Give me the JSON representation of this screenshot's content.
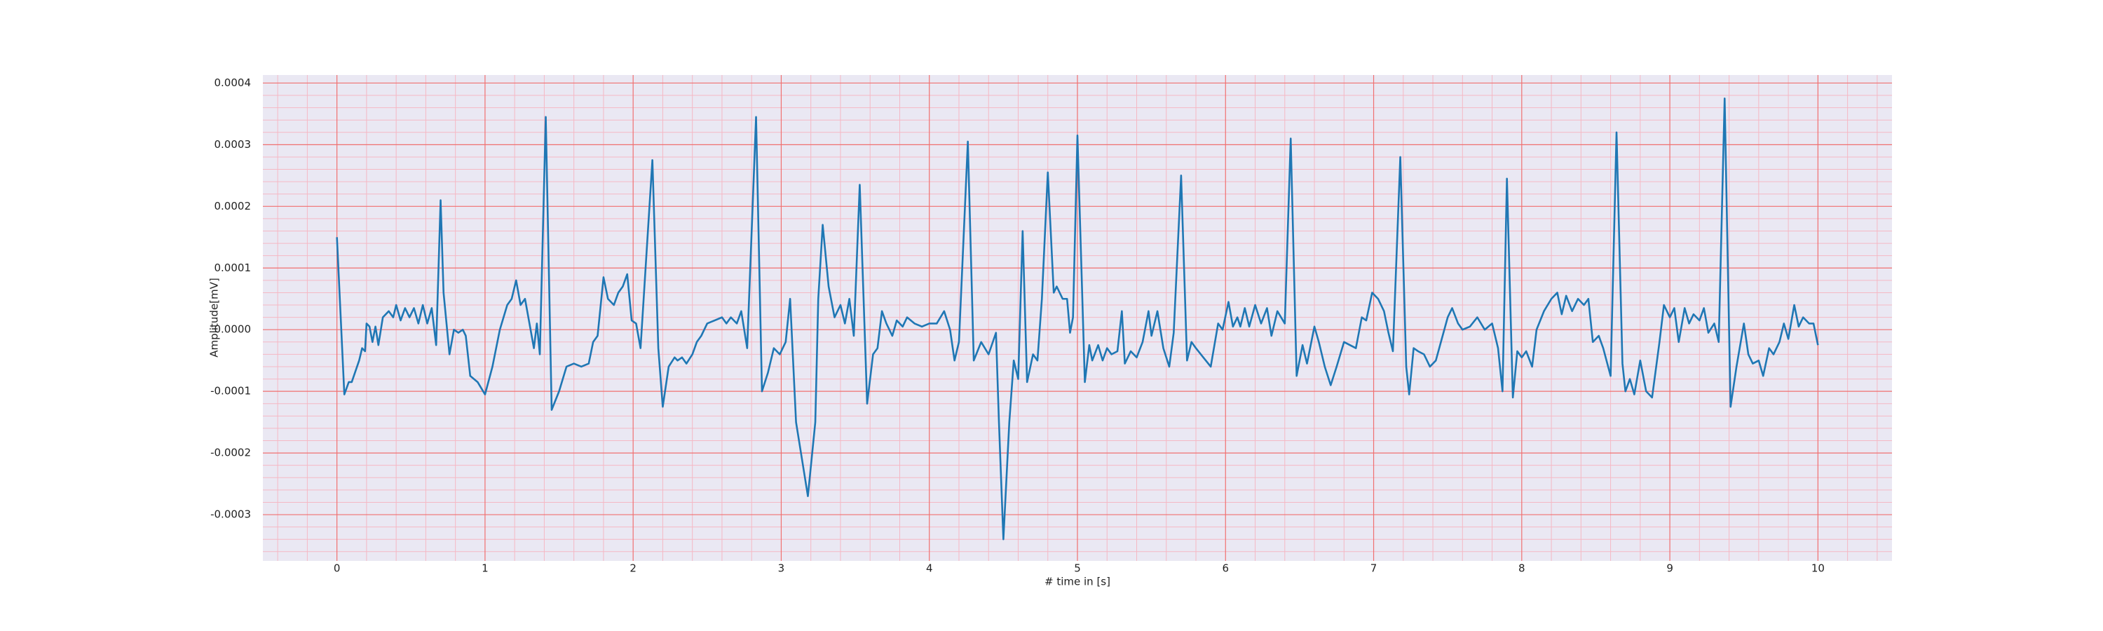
{
  "chart_data": {
    "type": "line",
    "xlabel": "# time in [s]",
    "ylabel": "Amplitude[mV]",
    "color": "#1f77b4",
    "background": "#eae8f3",
    "grid": true,
    "grid_color": "#f07070",
    "minor_grid": {
      "x_per_major": 5,
      "y_per_major": 5,
      "color": "#f5b8c4"
    },
    "xlim": [
      -0.5,
      10.5
    ],
    "xticks": [
      0,
      1,
      2,
      3,
      4,
      5,
      6,
      7,
      8,
      9,
      10
    ],
    "ylim": [
      -0.000375,
      0.000413
    ],
    "yticks": [
      -0.0003,
      -0.0002,
      -0.0001,
      {
        "value": 0,
        "label": "0.0000"
      },
      0.0001,
      0.0002,
      0.0003,
      0.0004
    ],
    "x": [
      0,
      0.05,
      0.08,
      0.1,
      0.15,
      0.17,
      0.19,
      0.2,
      0.22,
      0.24,
      0.26,
      0.28,
      0.31,
      0.35,
      0.38,
      0.4,
      0.43,
      0.46,
      0.49,
      0.52,
      0.55,
      0.58,
      0.61,
      0.64,
      0.67,
      0.7,
      0.72,
      0.76,
      0.79,
      0.82,
      0.85,
      0.87,
      0.9,
      0.95,
      1.0,
      1.05,
      1.1,
      1.15,
      1.18,
      1.21,
      1.24,
      1.27,
      1.3,
      1.33,
      1.35,
      1.37,
      1.41,
      1.45,
      1.5,
      1.55,
      1.6,
      1.65,
      1.7,
      1.73,
      1.76,
      1.8,
      1.83,
      1.87,
      1.9,
      1.93,
      1.96,
      1.99,
      2.02,
      2.05,
      2.13,
      2.17,
      2.2,
      2.24,
      2.28,
      2.3,
      2.33,
      2.36,
      2.4,
      2.43,
      2.46,
      2.5,
      2.55,
      2.6,
      2.63,
      2.66,
      2.7,
      2.73,
      2.77,
      2.83,
      2.87,
      2.91,
      2.95,
      2.99,
      3.03,
      3.06,
      3.1,
      3.18,
      3.23,
      3.25,
      3.28,
      3.32,
      3.36,
      3.4,
      3.43,
      3.46,
      3.49,
      3.53,
      3.58,
      3.62,
      3.65,
      3.68,
      3.71,
      3.75,
      3.78,
      3.82,
      3.85,
      3.9,
      3.95,
      4.0,
      4.05,
      4.1,
      4.14,
      4.17,
      4.2,
      4.26,
      4.3,
      4.35,
      4.4,
      4.45,
      4.47,
      4.5,
      4.54,
      4.57,
      4.6,
      4.63,
      4.66,
      4.7,
      4.73,
      4.76,
      4.8,
      4.84,
      4.86,
      4.9,
      4.93,
      4.95,
      4.97,
      5.0,
      5.05,
      5.08,
      5.1,
      5.14,
      5.17,
      5.2,
      5.23,
      5.27,
      5.3,
      5.32,
      5.36,
      5.4,
      5.44,
      5.48,
      5.5,
      5.54,
      5.58,
      5.62,
      5.65,
      5.7,
      5.74,
      5.77,
      5.8,
      5.85,
      5.9,
      5.95,
      5.98,
      6.02,
      6.05,
      6.08,
      6.1,
      6.13,
      6.16,
      6.2,
      6.24,
      6.28,
      6.31,
      6.35,
      6.4,
      6.44,
      6.48,
      6.52,
      6.55,
      6.6,
      6.63,
      6.67,
      6.71,
      6.75,
      6.8,
      6.84,
      6.88,
      6.92,
      6.95,
      6.99,
      7.03,
      7.07,
      7.1,
      7.13,
      7.18,
      7.22,
      7.24,
      7.27,
      7.3,
      7.34,
      7.38,
      7.42,
      7.46,
      7.5,
      7.53,
      7.57,
      7.6,
      7.65,
      7.7,
      7.75,
      7.8,
      7.84,
      7.87,
      7.9,
      7.94,
      7.97,
      8.0,
      8.03,
      8.07,
      8.1,
      8.15,
      8.2,
      8.24,
      8.27,
      8.3,
      8.34,
      8.38,
      8.42,
      8.45,
      8.48,
      8.52,
      8.55,
      8.6,
      8.64,
      8.68,
      8.7,
      8.73,
      8.76,
      8.8,
      8.84,
      8.88,
      8.93,
      8.96,
      9.0,
      9.03,
      9.06,
      9.1,
      9.13,
      9.16,
      9.2,
      9.23,
      9.26,
      9.3,
      9.33,
      9.37,
      9.41,
      9.45,
      9.5,
      9.53,
      9.56,
      9.6,
      9.63,
      9.67,
      9.7,
      9.74,
      9.77,
      9.8,
      9.84,
      9.87,
      9.9,
      9.94,
      9.97,
      10.0
    ],
    "values": [
      0.00015,
      -0.000105,
      -8.5e-05,
      -8.5e-05,
      -5e-05,
      -3e-05,
      -3.5e-05,
      1e-05,
      5e-06,
      -2e-05,
      5e-06,
      -2.5e-05,
      2e-05,
      3e-05,
      2e-05,
      4e-05,
      1.5e-05,
      3.5e-05,
      2e-05,
      3.5e-05,
      1e-05,
      4e-05,
      1e-05,
      3.5e-05,
      -2.5e-05,
      0.00021,
      6e-05,
      -4e-05,
      0,
      -5e-06,
      0,
      -1e-05,
      -7.5e-05,
      -8.5e-05,
      -0.000105,
      -6e-05,
      0,
      4e-05,
      5e-05,
      8e-05,
      4e-05,
      5e-05,
      1e-05,
      -3e-05,
      1e-05,
      -4e-05,
      0.000345,
      -0.00013,
      -0.0001,
      -6e-05,
      -5.5e-05,
      -6e-05,
      -5.5e-05,
      -2e-05,
      -1e-05,
      8.5e-05,
      5e-05,
      4e-05,
      6e-05,
      7e-05,
      9e-05,
      1.5e-05,
      1e-05,
      -3e-05,
      0.000275,
      -3e-05,
      -0.000125,
      -6e-05,
      -4.5e-05,
      -5e-05,
      -4.5e-05,
      -5.5e-05,
      -4e-05,
      -2e-05,
      -1e-05,
      1e-05,
      1.5e-05,
      2e-05,
      1e-05,
      2e-05,
      1e-05,
      3e-05,
      -3e-05,
      0.000345,
      -0.0001,
      -7e-05,
      -3e-05,
      -4e-05,
      -2e-05,
      5e-05,
      -0.00015,
      -0.00027,
      -0.00015,
      5e-05,
      0.00017,
      7e-05,
      2e-05,
      4e-05,
      1e-05,
      5e-05,
      -1e-05,
      0.000235,
      -0.00012,
      -4e-05,
      -3e-05,
      3e-05,
      1e-05,
      -1e-05,
      1.5e-05,
      5e-06,
      2e-05,
      1e-05,
      5e-06,
      1e-05,
      1e-05,
      3e-05,
      0,
      -5e-05,
      -2e-05,
      0.000305,
      -5e-05,
      -2e-05,
      -4e-05,
      -5e-06,
      -0.00015,
      -0.00034,
      -0.00015,
      -5e-05,
      -8e-05,
      0.00016,
      -8.5e-05,
      -4e-05,
      -5e-05,
      5e-05,
      0.000255,
      6e-05,
      7e-05,
      5e-05,
      5e-05,
      -5e-06,
      2e-05,
      0.000315,
      -8.5e-05,
      -2.5e-05,
      -5e-05,
      -2.5e-05,
      -5e-05,
      -3e-05,
      -4e-05,
      -3.5e-05,
      3e-05,
      -5.5e-05,
      -3.5e-05,
      -4.5e-05,
      -2e-05,
      3e-05,
      -1e-05,
      3e-05,
      -3e-05,
      -6e-05,
      -5e-06,
      0.00025,
      -5e-05,
      -2e-05,
      -3e-05,
      -4.5e-05,
      -6e-05,
      1e-05,
      0,
      4.5e-05,
      5e-06,
      2e-05,
      5e-06,
      3.5e-05,
      5e-06,
      4e-05,
      1e-05,
      3.5e-05,
      -1e-05,
      3e-05,
      1e-05,
      0.00031,
      -7.5e-05,
      -2.5e-05,
      -5.5e-05,
      5e-06,
      -2e-05,
      -6e-05,
      -9e-05,
      -6e-05,
      -2e-05,
      -2.5e-05,
      -3e-05,
      2e-05,
      1.5e-05,
      6e-05,
      5e-05,
      3e-05,
      -5e-06,
      -3.5e-05,
      0.00028,
      -6e-05,
      -0.000105,
      -3e-05,
      -3.5e-05,
      -4e-05,
      -6e-05,
      -5e-05,
      -1.5e-05,
      2e-05,
      3.5e-05,
      1e-05,
      0,
      5e-06,
      2e-05,
      0,
      1e-05,
      -3e-05,
      -0.0001,
      0.000245,
      -0.00011,
      -3.5e-05,
      -4.5e-05,
      -3.5e-05,
      -6e-05,
      0,
      3e-05,
      5e-05,
      6e-05,
      2.5e-05,
      5.5e-05,
      3e-05,
      5e-05,
      4e-05,
      5e-05,
      -2e-05,
      -1e-05,
      -3e-05,
      -7.5e-05,
      0.00032,
      -5.5e-05,
      -0.0001,
      -8e-05,
      -0.000105,
      -5e-05,
      -0.0001,
      -0.00011,
      -2e-05,
      4e-05,
      2e-05,
      3.5e-05,
      -2e-05,
      3.5e-05,
      1e-05,
      2.5e-05,
      1.5e-05,
      3.5e-05,
      -5e-06,
      1e-05,
      -2e-05,
      0.000375,
      -0.000125,
      -6e-05,
      1e-05,
      -4e-05,
      -5.5e-05,
      -5e-05,
      -7.5e-05,
      -3e-05,
      -4e-05,
      -2e-05,
      1e-05,
      -1.5e-05,
      4e-05,
      5e-06,
      2e-05,
      1e-05,
      1e-05,
      -2.5e-05
    ]
  }
}
